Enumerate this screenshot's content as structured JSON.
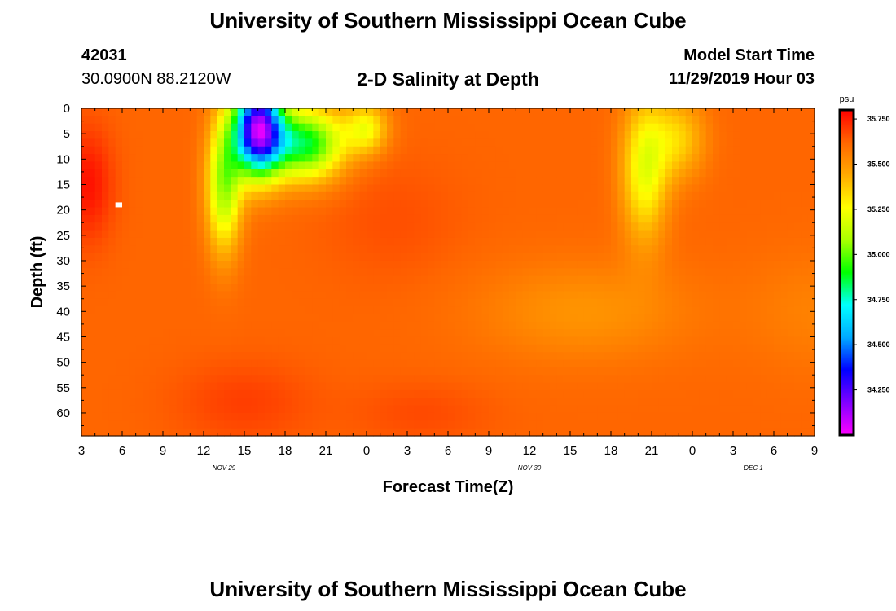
{
  "page": {
    "title_top": "University of Southern Mississippi Ocean Cube",
    "title_bottom": "University of Southern Mississippi Ocean Cube",
    "station_id": "42031",
    "station_coords": "30.0900N 88.2120W",
    "model_label": "Model Start Time",
    "model_time": "11/29/2019 Hour 03"
  },
  "colors": {
    "stops": [
      "#ff00ff",
      "#8000ff",
      "#0000ff",
      "#00aaff",
      "#00ffff",
      "#00ff00",
      "#aaff00",
      "#ffff00",
      "#ffaa00",
      "#ff6600",
      "#ff0000"
    ],
    "missing": "#ffffff"
  },
  "chart_data": {
    "type": "heatmap",
    "title": "2-D Salinity at Depth",
    "xlabel": "Forecast Time(Z)",
    "ylabel": "Depth (ft)",
    "x_range": [
      0,
      54
    ],
    "y_range": [
      0,
      64.5
    ],
    "x_ticks": [
      {
        "hours": 0,
        "label": "3"
      },
      {
        "hours": 3,
        "label": "6"
      },
      {
        "hours": 6,
        "label": "9"
      },
      {
        "hours": 9,
        "label": "12"
      },
      {
        "hours": 12,
        "label": "15"
      },
      {
        "hours": 15,
        "label": "18"
      },
      {
        "hours": 18,
        "label": "21"
      },
      {
        "hours": 21,
        "label": "0"
      },
      {
        "hours": 24,
        "label": "3"
      },
      {
        "hours": 27,
        "label": "6"
      },
      {
        "hours": 30,
        "label": "9"
      },
      {
        "hours": 33,
        "label": "12"
      },
      {
        "hours": 36,
        "label": "15"
      },
      {
        "hours": 39,
        "label": "18"
      },
      {
        "hours": 42,
        "label": "21"
      },
      {
        "hours": 45,
        "label": "0"
      },
      {
        "hours": 48,
        "label": "3"
      },
      {
        "hours": 51,
        "label": "6"
      },
      {
        "hours": 54,
        "label": "9"
      }
    ],
    "date_labels": [
      {
        "hours": 10.5,
        "label": "NOV 29"
      },
      {
        "hours": 33,
        "label": "NOV 30"
      },
      {
        "hours": 49.5,
        "label": "DEC 1"
      }
    ],
    "y_ticks": [
      {
        "depth": 0,
        "label": "0"
      },
      {
        "depth": 5,
        "label": "5"
      },
      {
        "depth": 10,
        "label": "10"
      },
      {
        "depth": 15,
        "label": "15"
      },
      {
        "depth": 20,
        "label": "20"
      },
      {
        "depth": 25,
        "label": "25"
      },
      {
        "depth": 30,
        "label": "30"
      },
      {
        "depth": 35,
        "label": "35"
      },
      {
        "depth": 40,
        "label": "40"
      },
      {
        "depth": 45,
        "label": "45"
      },
      {
        "depth": 50,
        "label": "50"
      },
      {
        "depth": 55,
        "label": "55"
      },
      {
        "depth": 60,
        "label": "60"
      }
    ],
    "colorbar": {
      "unit": "psu",
      "min": 34.0,
      "max": 35.8,
      "ticks": [
        {
          "value": 35.75,
          "label": "35.750"
        },
        {
          "value": 35.5,
          "label": "35.500"
        },
        {
          "value": 35.25,
          "label": "35.250"
        },
        {
          "value": 35.0,
          "label": "35.000"
        },
        {
          "value": 34.75,
          "label": "34.750"
        },
        {
          "value": 34.5,
          "label": "34.500"
        },
        {
          "value": 34.25,
          "label": "34.250"
        }
      ]
    },
    "field": {
      "description_note": "approximate salinity field (psu), base plus features; values in data units (hours, ft)",
      "base": 35.62,
      "features": [
        {
          "t": 0.5,
          "d": 15,
          "st": 1.8,
          "sd": 11,
          "amp": 0.15
        },
        {
          "t": 12,
          "d": 58,
          "st": 5,
          "sd": 8,
          "amp": 0.07
        },
        {
          "t": 25,
          "d": 60,
          "st": 5,
          "sd": 6,
          "amp": 0.05
        },
        {
          "t": 23,
          "d": 22,
          "st": 5,
          "sd": 12,
          "amp": 0.04
        },
        {
          "t": 37,
          "d": 40,
          "st": 8,
          "sd": 10,
          "amp": -0.12
        },
        {
          "t": 54,
          "d": 40,
          "st": 5,
          "sd": 12,
          "amp": -0.07
        },
        {
          "t": 41.5,
          "d": 12,
          "st": 1.7,
          "sd": 14,
          "amp": -0.4
        },
        {
          "t": 44,
          "d": 6,
          "st": 2.0,
          "sd": 8,
          "amp": -0.25
        },
        {
          "t": 10.5,
          "d": 15,
          "st": 1.3,
          "sd": 13,
          "amp": -0.55
        },
        {
          "t": 13,
          "d": 4,
          "st": 1.8,
          "sd": 9,
          "amp": -1.45
        },
        {
          "t": 16.5,
          "d": 7,
          "st": 2.8,
          "sd": 7,
          "amp": -0.75
        },
        {
          "t": 21,
          "d": 4,
          "st": 1.6,
          "sd": 5,
          "amp": -0.35
        }
      ],
      "missing_cells": [
        {
          "t": 2.5,
          "d": 19
        }
      ]
    }
  }
}
